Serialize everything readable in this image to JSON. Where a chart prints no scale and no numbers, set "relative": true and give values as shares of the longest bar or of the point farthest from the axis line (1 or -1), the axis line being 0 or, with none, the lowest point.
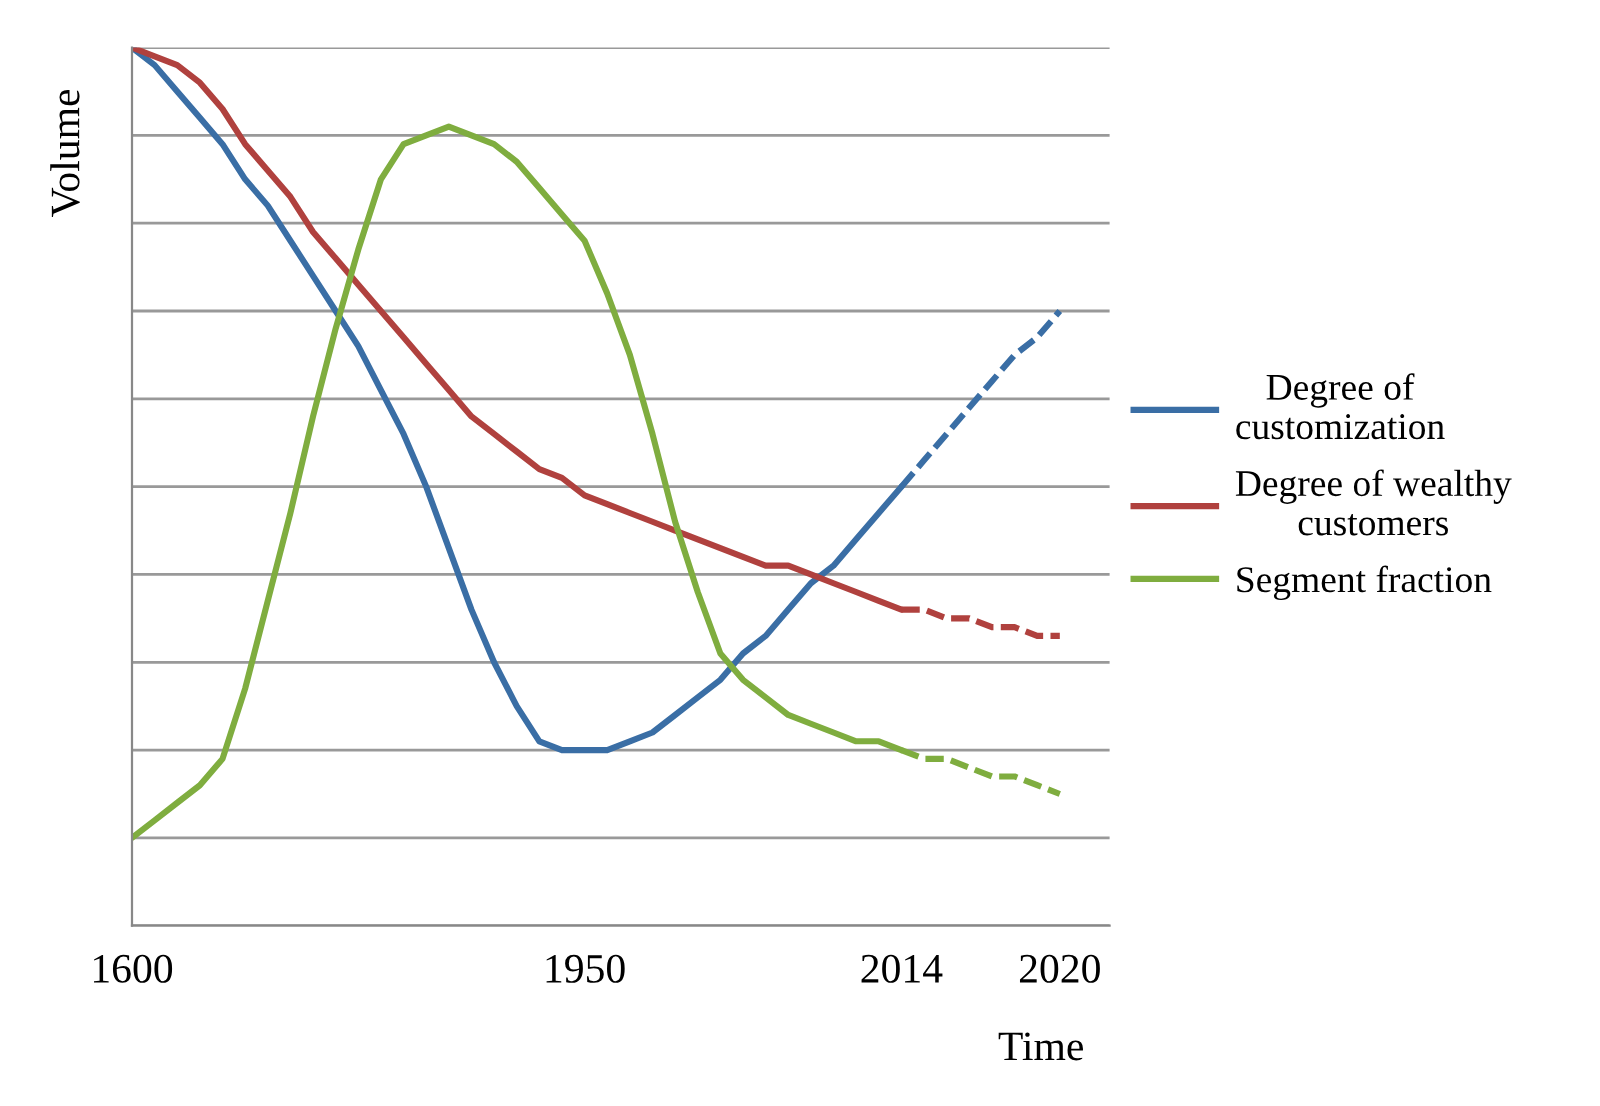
{
  "chart_data": {
    "type": "line",
    "relative": true,
    "ylabel": "Volume",
    "xlabel": "Time",
    "categories": [
      "1600",
      null,
      null,
      null,
      null,
      null,
      null,
      null,
      null,
      null,
      null,
      null,
      null,
      null,
      null,
      null,
      null,
      null,
      null,
      null,
      "1950",
      null,
      null,
      null,
      null,
      null,
      null,
      null,
      null,
      null,
      null,
      null,
      null,
      null,
      "2014",
      null,
      null,
      null,
      null,
      null,
      null,
      "2020"
    ],
    "series": [
      {
        "name": "Degree of\ncustomization",
        "color": "#3a6ea5",
        "line_style": "solid",
        "values": [
          1.0,
          0.98,
          0.95,
          0.92,
          0.89,
          0.85,
          0.82,
          0.78,
          0.74,
          0.7,
          0.66,
          0.61,
          0.56,
          0.5,
          0.43,
          0.36,
          0.3,
          0.25,
          0.21,
          0.2,
          0.2,
          0.2,
          0.21,
          0.22,
          0.24,
          0.26,
          0.28,
          0.31,
          0.33,
          0.36,
          0.39,
          0.41,
          0.44,
          0.47,
          0.5,
          null,
          null,
          null,
          null,
          null,
          null,
          null
        ]
      },
      {
        "name": "Degree of wealthy\ncustomers",
        "color": "#b0413e",
        "line_style": "solid",
        "values": [
          1.0,
          0.99,
          0.98,
          0.96,
          0.93,
          0.89,
          0.86,
          0.83,
          0.79,
          0.76,
          0.73,
          0.7,
          0.67,
          0.64,
          0.61,
          0.58,
          0.56,
          0.54,
          0.52,
          0.51,
          0.49,
          0.48,
          0.47,
          0.46,
          0.45,
          0.44,
          0.43,
          0.42,
          0.41,
          0.41,
          0.4,
          0.39,
          0.38,
          0.37,
          0.36,
          null,
          null,
          null,
          null,
          null,
          null,
          null
        ]
      },
      {
        "name": "Segment fraction",
        "color": "#7fad3f",
        "line_style": "solid",
        "values": [
          0.1,
          0.12,
          0.14,
          0.16,
          0.19,
          0.27,
          0.37,
          0.47,
          0.58,
          0.68,
          0.77,
          0.85,
          0.89,
          0.9,
          0.91,
          0.9,
          0.89,
          0.87,
          0.84,
          0.81,
          0.78,
          0.72,
          0.65,
          0.56,
          0.46,
          0.38,
          0.31,
          0.28,
          0.26,
          0.24,
          0.23,
          0.22,
          0.21,
          0.21,
          0.2,
          null,
          null,
          null,
          null,
          null,
          null,
          null
        ]
      },
      {
        "color": "#3a6ea5",
        "line_style": "dashed",
        "values": [
          null,
          null,
          null,
          null,
          null,
          null,
          null,
          null,
          null,
          null,
          null,
          null,
          null,
          null,
          null,
          null,
          null,
          null,
          null,
          null,
          null,
          null,
          null,
          null,
          null,
          null,
          null,
          null,
          null,
          null,
          null,
          null,
          null,
          null,
          0.5,
          0.53,
          0.56,
          0.59,
          0.62,
          0.65,
          0.67,
          0.7
        ]
      },
      {
        "color": "#b0413e",
        "line_style": "dashed",
        "values": [
          null,
          null,
          null,
          null,
          null,
          null,
          null,
          null,
          null,
          null,
          null,
          null,
          null,
          null,
          null,
          null,
          null,
          null,
          null,
          null,
          null,
          null,
          null,
          null,
          null,
          null,
          null,
          null,
          null,
          null,
          null,
          null,
          null,
          null,
          0.36,
          0.36,
          0.35,
          0.35,
          0.34,
          0.34,
          0.33,
          0.33
        ]
      },
      {
        "color": "#7fad3f",
        "line_style": "dashed",
        "values": [
          null,
          null,
          null,
          null,
          null,
          null,
          null,
          null,
          null,
          null,
          null,
          null,
          null,
          null,
          null,
          null,
          null,
          null,
          null,
          null,
          null,
          null,
          null,
          null,
          null,
          null,
          null,
          null,
          null,
          null,
          null,
          null,
          null,
          null,
          0.2,
          0.19,
          0.19,
          0.18,
          0.17,
          0.17,
          0.16,
          0.15
        ]
      }
    ],
    "grid": "y",
    "legend": "right"
  }
}
